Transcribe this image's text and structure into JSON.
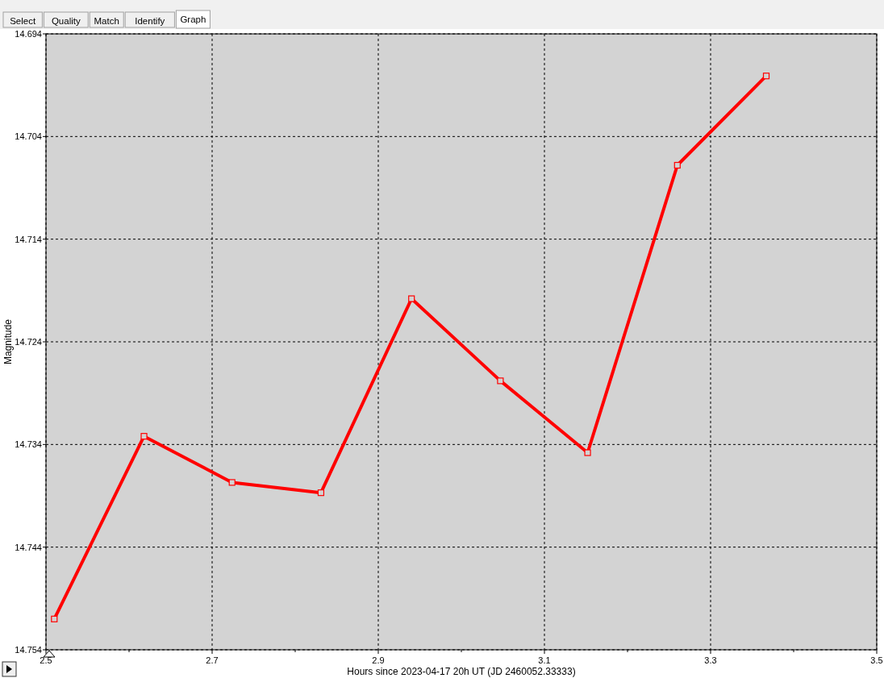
{
  "chart_data": {
    "type": "line",
    "xlabel": "Hours since 2023-04-17 20h UT (JD 2460052.33333)",
    "ylabel": "Magnitude",
    "annotations": [
      "Select",
      "Quality",
      "Match",
      "Identify",
      "Graph"
    ],
    "x": [
      2.51,
      2.618,
      2.724,
      2.831,
      2.94,
      3.047,
      3.152,
      3.26,
      3.367
    ],
    "series": [
      {
        "color": "#ff0000",
        "values": [
          14.751,
          14.7332,
          14.7377,
          14.7387,
          14.7198,
          14.7278,
          14.7348,
          14.7068,
          14.6981
        ]
      }
    ],
    "xlim": [
      2.5,
      3.5
    ],
    "xticks": [
      2.5,
      {
        "value": 2.6,
        "label": null
      },
      2.7,
      {
        "value": 2.8,
        "label": null
      },
      2.9,
      {
        "value": 3.0,
        "label": null
      },
      3.1,
      {
        "value": 3.2,
        "label": null
      },
      3.3,
      {
        "value": 3.4,
        "label": null
      },
      3.5
    ],
    "ylim": [
      14.754,
      14.694
    ],
    "yticks": [
      14.694,
      14.704,
      14.714,
      14.724,
      14.734,
      14.744,
      14.754
    ],
    "grid": true,
    "marker": "square",
    "line_style": "solid"
  }
}
